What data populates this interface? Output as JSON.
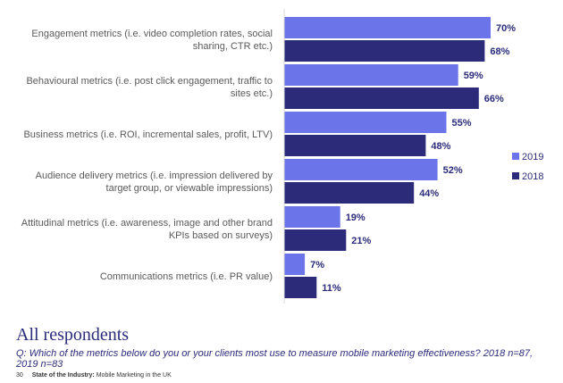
{
  "chart_data": {
    "type": "bar",
    "orientation": "horizontal",
    "categories": [
      [
        "Engagement metrics (i.e. video completion rates, social",
        "sharing, CTR etc.)"
      ],
      [
        "Behavioural metrics (i.e. post click engagement, traffic to",
        "sites etc.)"
      ],
      [
        "Business metrics (i.e. ROI, incremental sales, profit, LTV)"
      ],
      [
        "Audience delivery metrics (i.e. impression delivered by",
        "target group, or viewable impressions)"
      ],
      [
        "Attitudinal metrics (i.e. awareness, image and other brand",
        "KPIs based on surveys)"
      ],
      [
        "Communications metrics (i.e. PR value)"
      ]
    ],
    "series": [
      {
        "name": "2019",
        "color": "#6b74e8",
        "values": [
          70,
          59,
          55,
          52,
          19,
          7
        ],
        "labels": [
          "70%",
          "59%",
          "55%",
          "52%",
          "19%",
          "7%"
        ]
      },
      {
        "name": "2018",
        "color": "#2b2b7a",
        "values": [
          68,
          66,
          48,
          44,
          21,
          11
        ],
        "labels": [
          "68%",
          "66%",
          "48%",
          "44%",
          "21%",
          "11%"
        ]
      }
    ],
    "xlim": [
      0,
      100
    ],
    "legend": "right",
    "grid": false
  },
  "subtitle": "All respondents",
  "question": "Q: Which of the metrics below do you or your clients most use to measure mobile marketing effectiveness? 2018 n=87, 2019 n=83",
  "footer": {
    "page_number": "30",
    "publication": "State of the Industry:",
    "publication_sub": "Mobile Marketing in the UK"
  }
}
